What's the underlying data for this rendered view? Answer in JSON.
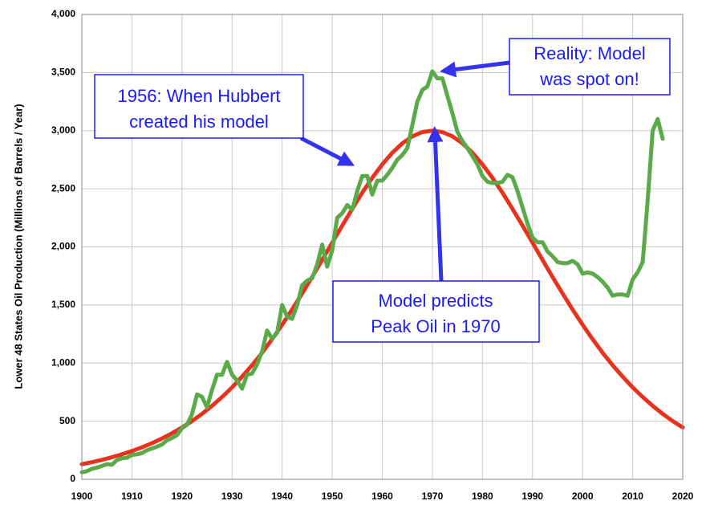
{
  "chart_data": {
    "type": "line",
    "y_label": "Lower 48 States Oil Production (Millions of Barrels / Year)",
    "xlim": [
      1900,
      2020
    ],
    "xticks": [
      1900,
      1910,
      1920,
      1930,
      1940,
      1950,
      1960,
      1970,
      1980,
      1990,
      2000,
      2010,
      2020
    ],
    "ylim": [
      0,
      4000
    ],
    "yticks": [
      0,
      500,
      {
        "value": 1000,
        "label": "1,000"
      },
      {
        "value": 1500,
        "label": "1,500"
      },
      {
        "value": 2000,
        "label": "2,000"
      },
      {
        "value": 2500,
        "label": "2,500"
      },
      {
        "value": 3000,
        "label": "3,000"
      },
      {
        "value": 3500,
        "label": "3,500"
      },
      {
        "value": 4000,
        "label": "4,000"
      }
    ],
    "grid": true,
    "series": [
      {
        "color": "#e8321e",
        "x": [
          1900,
          1902,
          1904,
          1906,
          1908,
          1910,
          1912,
          1914,
          1916,
          1918,
          1920,
          1922,
          1924,
          1926,
          1928,
          1930,
          1932,
          1934,
          1936,
          1938,
          1940,
          1942,
          1944,
          1946,
          1948,
          1950,
          1952,
          1954,
          1956,
          1958,
          1960,
          1962,
          1964,
          1966,
          1968,
          1970,
          1972,
          1974,
          1976,
          1978,
          1980,
          1982,
          1984,
          1986,
          1988,
          1990,
          1992,
          1994,
          1996,
          1998,
          2000,
          2002,
          2004,
          2006,
          2008,
          2010,
          2012,
          2014,
          2016,
          2018,
          2020
        ],
        "values": [
          130,
          147,
          167,
          190,
          215,
          243,
          275,
          311,
          351,
          396,
          446,
          501,
          563,
          632,
          708,
          791,
          883,
          982,
          1089,
          1206,
          1330,
          1461,
          1599,
          1741,
          1888,
          2036,
          2183,
          2327,
          2466,
          2594,
          2710,
          2810,
          2891,
          2951,
          2988,
          3000,
          2988,
          2951,
          2891,
          2810,
          2710,
          2594,
          2466,
          2327,
          2183,
          2036,
          1888,
          1741,
          1599,
          1461,
          1330,
          1206,
          1089,
          982,
          883,
          791,
          708,
          632,
          563,
          501,
          446
        ]
      },
      {
        "color": "#5aaa4a",
        "x": [
          1900,
          1901,
          1902,
          1903,
          1904,
          1905,
          1906,
          1907,
          1908,
          1909,
          1910,
          1911,
          1912,
          1913,
          1914,
          1915,
          1916,
          1917,
          1918,
          1919,
          1920,
          1921,
          1922,
          1923,
          1924,
          1925,
          1926,
          1927,
          1928,
          1929,
          1930,
          1931,
          1932,
          1933,
          1934,
          1935,
          1936,
          1937,
          1938,
          1939,
          1940,
          1941,
          1942,
          1943,
          1944,
          1945,
          1946,
          1947,
          1948,
          1949,
          1950,
          1951,
          1952,
          1953,
          1954,
          1955,
          1956,
          1957,
          1958,
          1959,
          1960,
          1961,
          1962,
          1963,
          1964,
          1965,
          1966,
          1967,
          1968,
          1969,
          1970,
          1971,
          1972,
          1973,
          1974,
          1975,
          1976,
          1977,
          1978,
          1979,
          1980,
          1981,
          1982,
          1983,
          1984,
          1985,
          1986,
          1987,
          1988,
          1989,
          1990,
          1991,
          1992,
          1993,
          1994,
          1995,
          1996,
          1997,
          1998,
          1999,
          2000,
          2001,
          2002,
          2003,
          2004,
          2005,
          2006,
          2007,
          2008,
          2009,
          2010,
          2011,
          2012,
          2013,
          2014,
          2015,
          2016
        ],
        "values": [
          60,
          70,
          90,
          100,
          115,
          130,
          125,
          165,
          180,
          185,
          210,
          215,
          225,
          250,
          265,
          280,
          300,
          335,
          355,
          380,
          440,
          470,
          560,
          730,
          710,
          620,
          770,
          900,
          900,
          1010,
          900,
          850,
          780,
          900,
          910,
          990,
          1100,
          1280,
          1210,
          1260,
          1500,
          1400,
          1380,
          1500,
          1670,
          1710,
          1730,
          1850,
          2020,
          1830,
          1970,
          2250,
          2290,
          2360,
          2320,
          2480,
          2610,
          2610,
          2450,
          2570,
          2570,
          2620,
          2680,
          2750,
          2790,
          2850,
          3050,
          3250,
          3350,
          3380,
          3510,
          3450,
          3450,
          3300,
          3150,
          2990,
          2910,
          2850,
          2780,
          2710,
          2610,
          2560,
          2550,
          2550,
          2560,
          2620,
          2600,
          2480,
          2340,
          2200,
          2080,
          2040,
          2040,
          1960,
          1920,
          1870,
          1860,
          1860,
          1880,
          1850,
          1770,
          1780,
          1770,
          1740,
          1700,
          1650,
          1580,
          1590,
          1590,
          1580,
          1720,
          1780,
          1870,
          2400,
          3000,
          3100,
          2930
        ]
      }
    ],
    "annotations": [
      {
        "text": [
          "1956: When Hubbert",
          "created his model"
        ]
      },
      {
        "text": [
          "Reality: Model",
          "was spot on!"
        ]
      },
      {
        "text": [
          "Model predicts",
          "Peak Oil in 1970"
        ]
      }
    ]
  }
}
